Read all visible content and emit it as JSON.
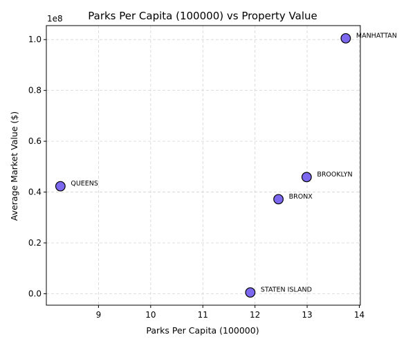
{
  "chart_data": {
    "type": "scatter",
    "title": "Parks Per Capita (100000) vs Property Value",
    "xlabel": "Parks Per Capita (100000)",
    "ylabel": "Average Market Value ($)",
    "y_offset_label": "1e8",
    "xlim": [
      8.0,
      14.02
    ],
    "ylim": [
      -0.045,
      1.055
    ],
    "x_ticks": [
      9,
      10,
      11,
      12,
      13,
      14
    ],
    "x_tick_labels": [
      "9",
      "10",
      "11",
      "12",
      "13",
      "14"
    ],
    "y_ticks": [
      0.0,
      0.2,
      0.4,
      0.6,
      0.8,
      1.0
    ],
    "y_tick_labels": [
      "0.0",
      "0.2",
      "0.4",
      "0.6",
      "0.8",
      "1.0"
    ],
    "y_scale": 100000000,
    "grid": true,
    "marker_color": "#7b68ee",
    "marker_edge_color": "#000000",
    "points": [
      {
        "label": "QUEENS",
        "x": 8.27,
        "y": 0.423
      },
      {
        "label": "STATEN ISLAND",
        "x": 11.91,
        "y": 0.005
      },
      {
        "label": "BRONX",
        "x": 12.45,
        "y": 0.372
      },
      {
        "label": "BROOKLYN",
        "x": 12.99,
        "y": 0.459
      },
      {
        "label": "MANHATTAN",
        "x": 13.74,
        "y": 1.005
      }
    ]
  }
}
